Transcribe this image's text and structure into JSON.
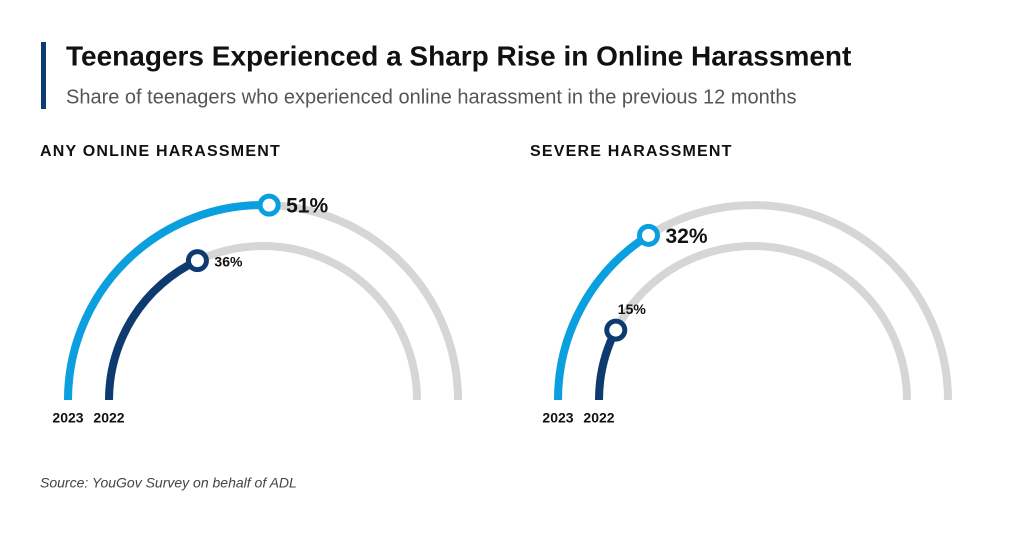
{
  "title": "Teenagers Experienced a Sharp Rise in Online Harassment",
  "subtitle": "Share of teenagers who experienced online harassment in the previous 12 months",
  "source": "Source: YouGov Survey on behalf of ADL",
  "chart_data": [
    {
      "type": "radial",
      "title": "ANY ONLINE HARASSMENT",
      "ylim": [
        0,
        100
      ],
      "track_color": "#d6d6d6",
      "series": [
        {
          "name": "2023",
          "color": "#0a9fdf",
          "values": [
            51
          ],
          "value_labels": [
            "51%"
          ]
        },
        {
          "name": "2022",
          "color": "#0d3b70",
          "values": [
            36
          ],
          "value_labels": [
            "36%"
          ]
        }
      ]
    },
    {
      "type": "radial",
      "title": "SEVERE HARASSMENT",
      "ylim": [
        0,
        100
      ],
      "track_color": "#d6d6d6",
      "series": [
        {
          "name": "2023",
          "color": "#0a9fdf",
          "values": [
            32
          ],
          "value_labels": [
            "32%"
          ]
        },
        {
          "name": "2022",
          "color": "#0d3b70",
          "values": [
            15
          ],
          "value_labels": [
            "15%"
          ]
        }
      ]
    }
  ]
}
